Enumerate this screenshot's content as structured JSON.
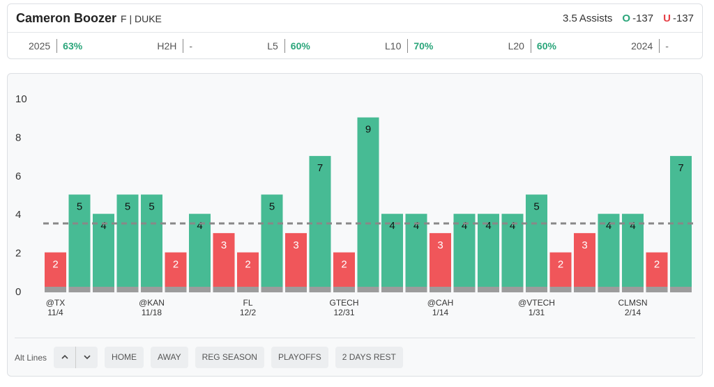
{
  "header": {
    "player": "Cameron Boozer",
    "position_team": "F | DUKE",
    "prop_line": 3.5,
    "prop_stat": "Assists",
    "over_label": "O",
    "over_odds": "-137",
    "under_label": "U",
    "under_odds": "-137"
  },
  "stats": [
    {
      "label": "2025",
      "value": "63%"
    },
    {
      "label": "H2H",
      "value": "-"
    },
    {
      "label": "L5",
      "value": "60%"
    },
    {
      "label": "L10",
      "value": "70%"
    },
    {
      "label": "L20",
      "value": "60%"
    },
    {
      "label": "2024",
      "value": "-"
    }
  ],
  "chart_data": {
    "type": "bar",
    "categories": [
      "@TX",
      null,
      null,
      null,
      "@KAN",
      null,
      null,
      null,
      "FL",
      null,
      null,
      null,
      "GTECH",
      null,
      null,
      null,
      "@CAH",
      null,
      null,
      null,
      "@VTECH",
      null,
      null,
      null,
      "CLMSN",
      null,
      null
    ],
    "dates": [
      "11/4",
      null,
      null,
      null,
      "11/18",
      null,
      null,
      null,
      "12/2",
      null,
      null,
      null,
      "12/31",
      null,
      null,
      null,
      "1/14",
      null,
      null,
      null,
      "1/31",
      null,
      null,
      null,
      "2/14",
      null,
      null
    ],
    "values": [
      2,
      5,
      4,
      5,
      5,
      2,
      4,
      3,
      2,
      5,
      3,
      7,
      2,
      9,
      4,
      4,
      3,
      4,
      4,
      4,
      5,
      2,
      3,
      4,
      4,
      2,
      7
    ],
    "over_color": "#47bb94",
    "under_color": "#f0565a",
    "ylim": [
      0,
      10
    ],
    "yticks": [
      0,
      2,
      4,
      6,
      8,
      10
    ]
  },
  "filters": {
    "alt_lines": "Alt Lines",
    "buttons": [
      "HOME",
      "AWAY",
      "REG SEASON",
      "PLAYOFFS",
      "2 DAYS REST"
    ]
  }
}
